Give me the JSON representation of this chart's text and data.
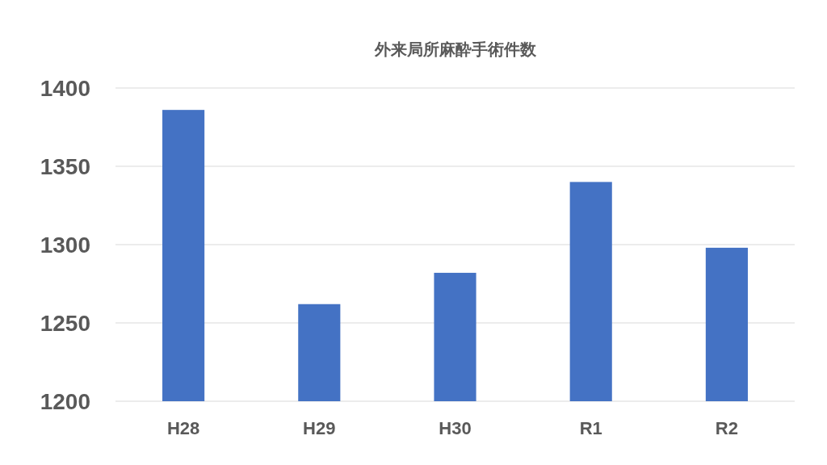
{
  "chart_data": {
    "type": "bar",
    "title": "外来局所麻酔手術件数",
    "categories": [
      "H28",
      "H29",
      "H30",
      "R1",
      "R2"
    ],
    "values": [
      1386,
      1262,
      1282,
      1340,
      1298
    ],
    "color": "#4472c4",
    "ylim": [
      1200,
      1400
    ],
    "yticks": [
      1200,
      1250,
      1300,
      1350,
      1400
    ],
    "grid": "y"
  }
}
